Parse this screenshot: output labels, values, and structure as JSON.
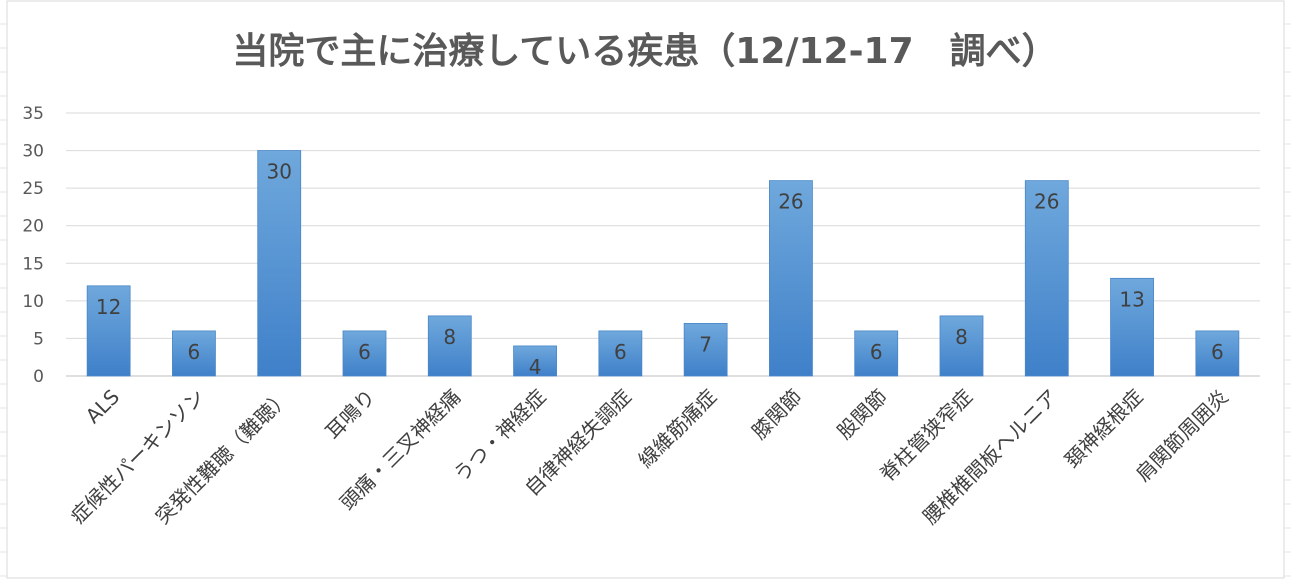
{
  "chart_data": {
    "type": "bar",
    "title": "当院で主に治療している疾患（12/12-17　調べ）",
    "xlabel": "",
    "ylabel": "",
    "ylim": [
      0,
      35
    ],
    "yticks": [
      0,
      5,
      10,
      15,
      20,
      25,
      30,
      35
    ],
    "grid": true,
    "legend": "none",
    "bar_color": "#5B9BD5",
    "categories": [
      "ALS",
      "症候性パーキンソン",
      "突発性難聴（難聴）",
      "耳鳴り",
      "頭痛・三叉神経痛",
      "うつ・神経症",
      "自律神経失調症",
      "線維筋痛症",
      "膝関節",
      "股関節",
      "脊柱管狭窄症",
      "腰椎椎間板ヘルニア",
      "頚神経根症",
      "肩関節周囲炎"
    ],
    "values": [
      12,
      6,
      30,
      6,
      8,
      4,
      6,
      7,
      26,
      6,
      8,
      26,
      13,
      6
    ]
  }
}
